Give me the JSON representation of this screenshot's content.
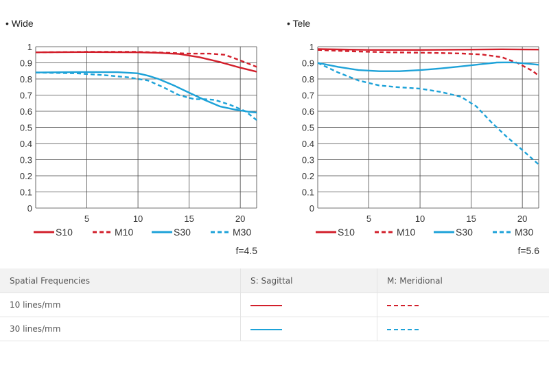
{
  "colors": {
    "s10": "#d21f2b",
    "m10": "#d21f2b",
    "s30": "#1da2d8",
    "m30": "#1da2d8",
    "grid": "#444444"
  },
  "chart_data": [
    {
      "type": "line",
      "title": "• Wide",
      "footnote": "f=4.5",
      "xlim": [
        0,
        21.6
      ],
      "ylim": [
        0,
        1
      ],
      "x_ticks": [
        5,
        10,
        15,
        20
      ],
      "y_ticks": [
        0,
        0.1,
        0.2,
        0.3,
        0.4,
        0.5,
        0.6,
        0.7,
        0.8,
        0.9,
        1
      ],
      "y_tick_labels": [
        "0",
        "0.1",
        "0.2",
        "0.3",
        "0.4",
        "0.5",
        "0.6",
        "0.7",
        "0.8",
        "0.9",
        "1"
      ],
      "x_tick_labels": [
        "5",
        "10",
        "15",
        "20"
      ],
      "series": [
        {
          "name": "S10",
          "style": "solid",
          "color_key": "s10",
          "x": [
            0,
            5,
            10,
            12,
            14,
            16,
            18,
            20,
            21.6
          ],
          "y": [
            0.965,
            0.967,
            0.965,
            0.962,
            0.955,
            0.935,
            0.905,
            0.87,
            0.845
          ]
        },
        {
          "name": "M10",
          "style": "dashed",
          "color_key": "m10",
          "x": [
            0,
            5,
            10,
            13,
            15,
            17,
            18.5,
            20,
            21.6
          ],
          "y": [
            0.965,
            0.968,
            0.968,
            0.962,
            0.957,
            0.957,
            0.95,
            0.915,
            0.875
          ]
        },
        {
          "name": "S30",
          "style": "solid",
          "color_key": "s30",
          "x": [
            0,
            4,
            8,
            10,
            11,
            12,
            13.5,
            15,
            16.5,
            18,
            19.5,
            21,
            21.6
          ],
          "y": [
            0.84,
            0.843,
            0.842,
            0.835,
            0.82,
            0.8,
            0.76,
            0.715,
            0.67,
            0.63,
            0.61,
            0.595,
            0.592
          ]
        },
        {
          "name": "M30",
          "style": "dashed",
          "color_key": "m30",
          "x": [
            0,
            4,
            7,
            9,
            11,
            12.5,
            14,
            15.5,
            16.5,
            17.5,
            19,
            20.5,
            21.6
          ],
          "y": [
            0.84,
            0.835,
            0.822,
            0.81,
            0.79,
            0.748,
            0.7,
            0.675,
            0.675,
            0.67,
            0.64,
            0.6,
            0.545
          ]
        }
      ]
    },
    {
      "type": "line",
      "title": "• Tele",
      "footnote": "f=5.6",
      "xlim": [
        0,
        21.6
      ],
      "ylim": [
        0,
        1
      ],
      "x_ticks": [
        5,
        10,
        15,
        20
      ],
      "y_ticks": [
        0,
        0.1,
        0.2,
        0.3,
        0.4,
        0.5,
        0.6,
        0.7,
        0.8,
        0.9,
        1
      ],
      "y_tick_labels": [
        "0",
        "0.1",
        "0.2",
        "0.3",
        "0.4",
        "0.5",
        "0.6",
        "0.7",
        "0.8",
        "0.9",
        "1"
      ],
      "x_tick_labels": [
        "5",
        "10",
        "15",
        "20"
      ],
      "series": [
        {
          "name": "S10",
          "style": "solid",
          "color_key": "s10",
          "x": [
            0,
            5,
            10,
            15,
            18,
            21.6
          ],
          "y": [
            0.985,
            0.98,
            0.98,
            0.982,
            0.984,
            0.982
          ]
        },
        {
          "name": "M10",
          "style": "dashed",
          "color_key": "m10",
          "x": [
            0,
            3,
            7,
            11,
            14,
            16,
            18,
            19.5,
            21,
            21.6
          ],
          "y": [
            0.98,
            0.972,
            0.965,
            0.962,
            0.958,
            0.952,
            0.935,
            0.9,
            0.85,
            0.82
          ]
        },
        {
          "name": "S30",
          "style": "solid",
          "color_key": "s30",
          "x": [
            0,
            2,
            4,
            6,
            8,
            10,
            12,
            14,
            16,
            17.5,
            19,
            20.5,
            21.6
          ],
          "y": [
            0.9,
            0.875,
            0.855,
            0.848,
            0.848,
            0.855,
            0.865,
            0.878,
            0.892,
            0.902,
            0.903,
            0.895,
            0.888
          ]
        },
        {
          "name": "M30",
          "style": "dashed",
          "color_key": "m30",
          "x": [
            0,
            2,
            4,
            6,
            8,
            10,
            12,
            14,
            15.5,
            17,
            18.5,
            20,
            21.6
          ],
          "y": [
            0.9,
            0.84,
            0.79,
            0.76,
            0.748,
            0.74,
            0.72,
            0.69,
            0.63,
            0.53,
            0.44,
            0.36,
            0.27
          ]
        }
      ]
    }
  ],
  "table": {
    "headers": [
      "Spatial Frequencies",
      "S: Sagittal",
      "M: Meridional"
    ],
    "rows": [
      {
        "label": "10 lines/mm",
        "sagittal_color": "#d21f2b",
        "meridional_color": "#d21f2b"
      },
      {
        "label": "30 lines/mm",
        "sagittal_color": "#1da2d8",
        "meridional_color": "#1da2d8"
      }
    ]
  }
}
